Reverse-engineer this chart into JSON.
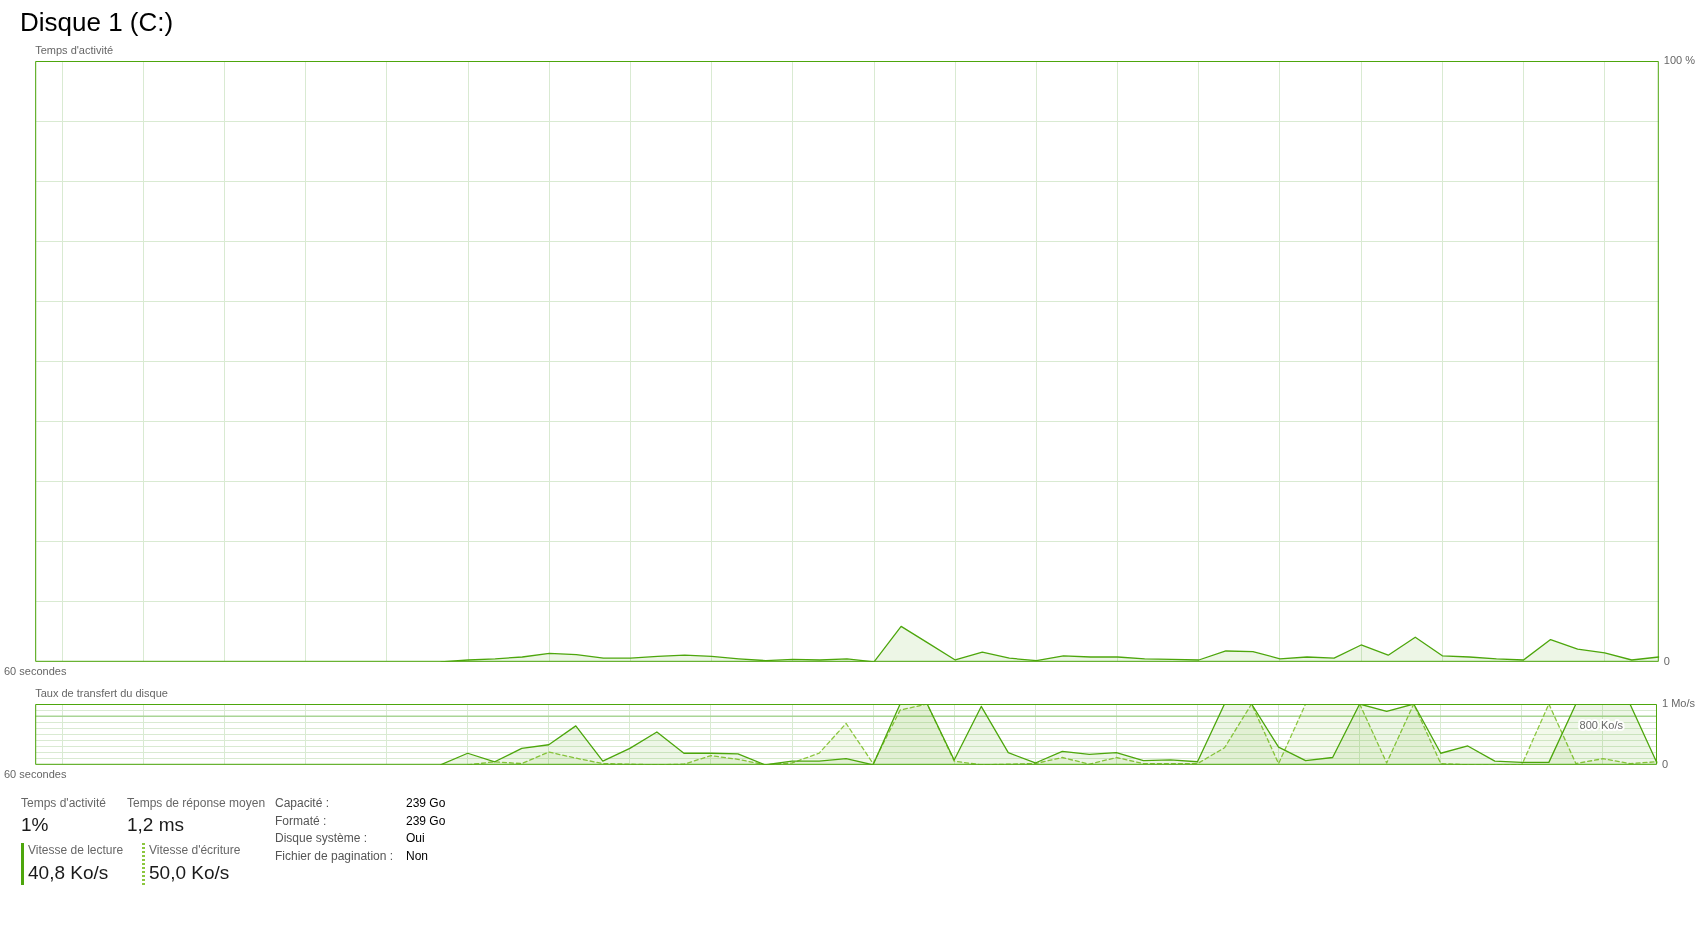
{
  "chart_data": [
    {
      "type": "area",
      "title": "Disque 1 (C:)",
      "ylabel": "Temps d'activité",
      "categories": [
        "60 secondes",
        null,
        null,
        null,
        null,
        null,
        null,
        null,
        null,
        null,
        null,
        null,
        null,
        null,
        null,
        null,
        null,
        null,
        null,
        null,
        null,
        null,
        null,
        null,
        null,
        null,
        null,
        null,
        null,
        null,
        null,
        null,
        null,
        null,
        null,
        null,
        null,
        null,
        null,
        null,
        null,
        null,
        null,
        null,
        null,
        null,
        null,
        null,
        null,
        null,
        null,
        null,
        null,
        null,
        null,
        null,
        null,
        null,
        null,
        null,
        null
      ],
      "values": [
        null,
        null,
        null,
        null,
        null,
        null,
        null,
        null,
        null,
        null,
        null,
        null,
        null,
        null,
        null,
        0,
        0.3,
        0.5,
        0.8,
        1.4,
        1.2,
        0.6,
        0.6,
        0.9,
        1.1,
        0.9,
        0.5,
        0.2,
        0.4,
        0.3,
        0.5,
        0,
        5.9,
        3.1,
        0.3,
        1.6,
        0.6,
        0.2,
        1.0,
        0.8,
        0.8,
        0.5,
        0.4,
        0.3,
        1.8,
        1.7,
        0.5,
        0.8,
        0.6,
        2.8,
        1.1,
        4.1,
        1.0,
        0.8,
        0.5,
        0.3,
        3.7,
        2.1,
        1.5,
        0.3,
        0.8
      ],
      "color": "#4da60c",
      "ylim": [
        0,
        100
      ],
      "yticks": [
        0,
        {
          "value": 10,
          "label": null
        },
        {
          "value": 20,
          "label": null
        },
        {
          "value": 30,
          "label": null
        },
        {
          "value": 40,
          "label": null
        },
        {
          "value": 50,
          "label": null
        },
        {
          "value": 60,
          "label": null
        },
        {
          "value": 70,
          "label": null
        },
        {
          "value": 80,
          "label": null
        },
        {
          "value": 90,
          "label": null
        },
        {
          "value": 100,
          "label": "100 %"
        }
      ],
      "grid": true
    },
    {
      "type": "area",
      "ylabel": "Taux de transfert du disque",
      "categories": [
        "60 secondes",
        null,
        null,
        null,
        null,
        null,
        null,
        null,
        null,
        null,
        null,
        null,
        null,
        null,
        null,
        null,
        null,
        null,
        null,
        null,
        null,
        null,
        null,
        null,
        null,
        null,
        null,
        null,
        null,
        null,
        null,
        null,
        null,
        null,
        null,
        null,
        null,
        null,
        null,
        null,
        null,
        null,
        null,
        null,
        null,
        null,
        null,
        null,
        null,
        null,
        null,
        null,
        null,
        null,
        null,
        null,
        null,
        null,
        null,
        null,
        null
      ],
      "series": [
        {
          "name": "Vitesse de lecture",
          "color": "#4da60c",
          "line_style": "solid",
          "values": [
            null,
            null,
            null,
            null,
            null,
            null,
            null,
            null,
            null,
            null,
            null,
            null,
            null,
            null,
            null,
            0,
            0.19,
            0.05,
            0.27,
            0.33,
            0.64,
            0.06,
            0.27,
            0.54,
            0.19,
            0.19,
            0.18,
            0,
            0.06,
            0.06,
            0.1,
            0,
            1,
            1,
            0.08,
            0.96,
            0.2,
            0.03,
            0.22,
            0.17,
            0.2,
            0.07,
            0.08,
            0.05,
            1,
            1,
            0.29,
            0.07,
            0.12,
            1,
            0.88,
            1,
            0.19,
            0.31,
            0.06,
            0.04,
            0.04,
            1,
            1,
            1,
            0.03
          ]
        },
        {
          "name": "Vitesse d'écriture",
          "color": "#8cc63f",
          "line_style": "dashed",
          "values": [
            null,
            null,
            null,
            null,
            null,
            null,
            null,
            null,
            null,
            null,
            null,
            null,
            null,
            null,
            null,
            null,
            0,
            0.05,
            0.02,
            0.21,
            0.11,
            0.02,
            0.01,
            0,
            0.01,
            0.15,
            0.09,
            0,
            0.03,
            0.19,
            0.68,
            0.02,
            0.9,
            1,
            0.06,
            0,
            0.01,
            0.02,
            0.12,
            0.01,
            0.12,
            0.02,
            0.02,
            0.02,
            0.28,
            1,
            0.02,
            1,
            1,
            1,
            0.03,
            1,
            0.02,
            0,
            0,
            0,
            1,
            0.02,
            0.1,
            0.02,
            0.05
          ]
        }
      ],
      "ylim": [
        0,
        1
      ],
      "yticks": [
        0,
        {
          "value": 0.1,
          "label": null
        },
        {
          "value": 0.2,
          "label": null
        },
        {
          "value": 0.3,
          "label": null
        },
        {
          "value": 0.4,
          "label": null
        },
        {
          "value": 0.5,
          "label": null
        },
        {
          "value": 0.6,
          "label": null
        },
        {
          "value": 0.7,
          "label": null
        },
        {
          "value": 0.8,
          "label": null
        },
        {
          "value": 0.9,
          "label": null
        },
        {
          "value": 1,
          "label": "1 Mo/s"
        }
      ],
      "ref_lines": [
        {
          "axis": "y",
          "value": 0.8,
          "label": "800 Ko/s",
          "color": "#a9d596"
        }
      ],
      "grid": true,
      "legend": "bottom left",
      "annotations": [
        "40,8 Ko/s",
        "50,0 Ko/s"
      ]
    },
    {
      "type": "other",
      "annotations": [
        "Temps d'activité",
        "1%",
        "Temps de réponse moyen",
        "1,2 ms",
        "Capacité :",
        "239 Go",
        "Formaté :",
        "239 Go",
        "Disque système :",
        "Oui",
        "Fichier de pagination :",
        "Non"
      ]
    }
  ]
}
